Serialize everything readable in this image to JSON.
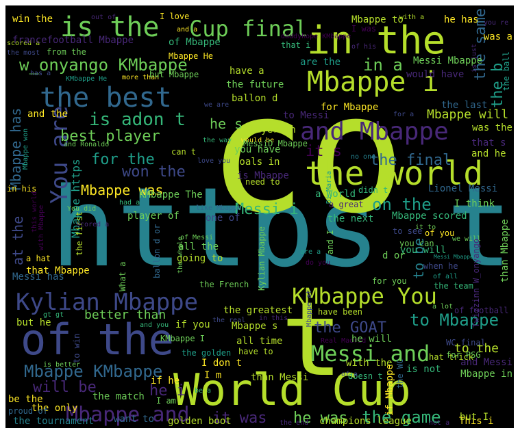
{
  "palette": [
    "#440154",
    "#482878",
    "#3e4989",
    "#31688e",
    "#26828e",
    "#1f9e89",
    "#35b779",
    "#6ece58",
    "#b5de2b",
    "#fde725"
  ],
  "words": [
    {
      "text": "https t",
      "color": "#26828e"
    },
    {
      "text": "co",
      "color": "#b5de2b"
    },
    {
      "text": "t",
      "color": "#b5de2b"
    },
    {
      "text": "World Cup",
      "color": "#b5de2b"
    },
    {
      "text": "of the",
      "color": "#3e4989"
    },
    {
      "text": "in the",
      "color": "#b5de2b"
    },
    {
      "text": "the world",
      "color": "#b5de2b"
    },
    {
      "text": "is the",
      "color": "#6ece58"
    },
    {
      "text": "the best",
      "color": "#31688e"
    },
    {
      "text": "Mbappe i",
      "color": "#b5de2b"
    },
    {
      "text": "and Mbappe",
      "color": "#482878"
    },
    {
      "text": "Kylian Mbappe",
      "color": "#3e4989"
    },
    {
      "text": "KMbappe You",
      "color": "#b5de2b"
    },
    {
      "text": "Messi and",
      "color": "#6ece58"
    },
    {
      "text": "Mbappe and",
      "color": "#482878"
    },
    {
      "text": "Mbappe KMbappe",
      "color": "#31688e"
    },
    {
      "text": "You are",
      "color": "#3e4989"
    },
    {
      "text": "Cup final",
      "color": "#6ece58"
    },
    {
      "text": "w_onyango KMbappe",
      "color": "#6ece58"
    },
    {
      "text": "is adon t",
      "color": "#35b779"
    },
    {
      "text": "the GOAT",
      "color": "#3e4989"
    },
    {
      "text": "to Mbappe",
      "color": "#1f9e89"
    },
    {
      "text": "he was",
      "color": "#6ece58"
    },
    {
      "text": "the game",
      "color": "#35b779"
    },
    {
      "text": "it was",
      "color": "#482878"
    },
    {
      "text": "will be",
      "color": "#482878"
    },
    {
      "text": "best player",
      "color": "#6ece58"
    },
    {
      "text": "for the",
      "color": "#1f9e89"
    },
    {
      "text": "won the",
      "color": "#3e4989"
    },
    {
      "text": "Mbappe was",
      "color": "#fde725"
    },
    {
      "text": "on the",
      "color": "#1f9e89"
    },
    {
      "text": "the final",
      "color": "#31688e"
    },
    {
      "text": "Messi i",
      "color": "#35b779"
    },
    {
      "text": "in a",
      "color": "#6ece58"
    },
    {
      "text": "the same",
      "color": "#31688e"
    },
    {
      "text": "the b",
      "color": "#1f9e89"
    },
    {
      "text": "Mbappe will",
      "color": "#b5de2b"
    },
    {
      "text": "he s",
      "color": "#6ece58"
    },
    {
      "text": "it s",
      "color": "#440154"
    },
    {
      "text": "he i",
      "color": "#482878"
    },
    {
      "text": "better than",
      "color": "#6ece58"
    },
    {
      "text": "to the",
      "color": "#b5de2b"
    },
    {
      "text": "Mbappe has",
      "color": "#31688e"
    },
    {
      "text": "Mbappe https",
      "color": "#1f9e89"
    },
    {
      "text": "at the",
      "color": "#3e4989"
    },
    {
      "text": "to be",
      "color": "#26828e"
    },
    {
      "text": "Messi Mbappe",
      "color": "#6ece58"
    },
    {
      "text": "Mbappe to",
      "color": "#b5de2b"
    },
    {
      "text": "he has",
      "color": "#fde725"
    },
    {
      "text": "was a",
      "color": "#fde725"
    },
    {
      "text": "are the",
      "color": "#1f9e89"
    },
    {
      "text": "would have",
      "color": "#482878"
    },
    {
      "text": "have a",
      "color": "#b5de2b"
    },
    {
      "text": "the future",
      "color": "#6ece58"
    },
    {
      "text": "ballon d",
      "color": "#b5de2b"
    },
    {
      "text": "for Mbappe",
      "color": "#fde725"
    },
    {
      "text": "the last",
      "color": "#31688e"
    },
    {
      "text": "was the",
      "color": "#b5de2b"
    },
    {
      "text": "and the",
      "color": "#fde725"
    },
    {
      "text": "Mbappe won",
      "color": "#1f9e89"
    },
    {
      "text": "in his",
      "color": "#fde725"
    },
    {
      "text": "scored a",
      "color": "#b5de2b"
    },
    {
      "text": "win the",
      "color": "#fde725"
    },
    {
      "text": "out of",
      "color": "#482878"
    },
    {
      "text": "I love",
      "color": "#fde725"
    },
    {
      "text": "and a",
      "color": "#fde725"
    },
    {
      "text": "with a",
      "color": "#b5de2b"
    },
    {
      "text": "you re",
      "color": "#482878"
    },
    {
      "text": "francefootball Mbappe",
      "color": "#482878"
    },
    {
      "text": "of Mbappe",
      "color": "#35b779"
    },
    {
      "text": "Mbappe He",
      "color": "#fde725"
    },
    {
      "text": "daddyhope KMbappe",
      "color": "#440154"
    },
    {
      "text": "I was",
      "color": "#440154"
    },
    {
      "text": "the most",
      "color": "#3e4989"
    },
    {
      "text": "from the",
      "color": "#6ece58"
    },
    {
      "text": "of his",
      "color": "#482878"
    },
    {
      "text": "that i",
      "color": "#35b779"
    },
    {
      "text": "is just",
      "color": "#482878"
    },
    {
      "text": "has a",
      "color": "#3e4989"
    },
    {
      "text": "KMbappe He",
      "color": "#1f9e89"
    },
    {
      "text": "more than",
      "color": "#fde725"
    },
    {
      "text": "but Mbappe",
      "color": "#6ece58"
    },
    {
      "text": "the ball",
      "color": "#1f9e89"
    },
    {
      "text": "to Messi",
      "color": "#482878"
    },
    {
      "text": "for a",
      "color": "#3e4989"
    },
    {
      "text": "the way",
      "color": "#35b779"
    },
    {
      "text": "would be",
      "color": "#fde725"
    },
    {
      "text": "player in",
      "color": "#b5de2b"
    },
    {
      "text": "MessiD Mbappe",
      "color": "#6ece58"
    },
    {
      "text": "and Ronaldo",
      "color": "#6ece58"
    },
    {
      "text": "that s",
      "color": "#482878"
    },
    {
      "text": "and he",
      "color": "#b5de2b"
    },
    {
      "text": "can t",
      "color": "#b5de2b"
    },
    {
      "text": "love you",
      "color": "#3e4989"
    },
    {
      "text": "you have",
      "color": "#6ece58"
    },
    {
      "text": "no one",
      "color": "#26828e"
    },
    {
      "text": "goals in",
      "color": "#b5de2b"
    },
    {
      "text": "is Mbappe",
      "color": "#482878"
    },
    {
      "text": "need to",
      "color": "#b5de2b"
    },
    {
      "text": "Di Maria",
      "color": "#1f9e89"
    },
    {
      "text": "didn t",
      "color": "#35b779"
    },
    {
      "text": "Lionel Messi",
      "color": "#31688e"
    },
    {
      "text": "a World",
      "color": "#35b779"
    },
    {
      "text": "I think",
      "color": "#6ece58"
    },
    {
      "text": "a great",
      "color": "#482878"
    },
    {
      "text": "KMbappe The",
      "color": "#6ece58"
    },
    {
      "text": "had a",
      "color": "#35b779"
    },
    {
      "text": "like Mbappe",
      "color": "#31688e"
    },
    {
      "text": "player of",
      "color": "#6ece58"
    },
    {
      "text": "one of",
      "color": "#3e4989"
    },
    {
      "text": "the next",
      "color": "#35b779"
    },
    {
      "text": "Mbappe scored",
      "color": "#35b779"
    },
    {
      "text": "it to",
      "color": "#6ece58"
    },
    {
      "text": "of you",
      "color": "#fde725"
    },
    {
      "text": "to see",
      "color": "#3e4989"
    },
    {
      "text": "we will",
      "color": "#6ece58"
    },
    {
      "text": "you can",
      "color": "#6ece58"
    },
    {
      "text": "you will",
      "color": "#35b779"
    },
    {
      "text": "d or",
      "color": "#6ece58"
    },
    {
      "text": "than Mbappe",
      "color": "#6ece58"
    },
    {
      "text": "when he",
      "color": "#3e4989"
    },
    {
      "text": "of all",
      "color": "#1f9e89"
    },
    {
      "text": "the team",
      "color": "#35b779"
    },
    {
      "text": "for you",
      "color": "#6ece58"
    },
    {
      "text": "a lot",
      "color": "#6ece58"
    },
    {
      "text": "of football",
      "color": "#482878"
    },
    {
      "text": "Messi has",
      "color": "#31688e"
    },
    {
      "text": "that Mbappe",
      "color": "#fde725"
    },
    {
      "text": "a hat",
      "color": "#fde725"
    },
    {
      "text": "What a",
      "color": "#6ece58"
    },
    {
      "text": "of Messi",
      "color": "#6ece58"
    },
    {
      "text": "all the",
      "color": "#6ece58"
    },
    {
      "text": "going to",
      "color": "#b5de2b"
    },
    {
      "text": "the French",
      "color": "#6ece58"
    },
    {
      "text": "the greatest",
      "color": "#b5de2b"
    },
    {
      "text": "the real",
      "color": "#3e4989"
    },
    {
      "text": "in this",
      "color": "#482878"
    },
    {
      "text": "have been",
      "color": "#b5de2b"
    },
    {
      "text": "Real Madrid",
      "color": "#440154"
    },
    {
      "text": "hat trick",
      "color": "#b5de2b"
    },
    {
      "text": "WC final",
      "color": "#3e4989"
    },
    {
      "text": "for PSG",
      "color": "#6ece58"
    },
    {
      "text": "he will",
      "color": "#6ece58"
    },
    {
      "text": "all time",
      "color": "#b5de2b"
    },
    {
      "text": "have to",
      "color": "#b5de2b"
    },
    {
      "text": "Mbappe s",
      "color": "#b5de2b"
    },
    {
      "text": "if you",
      "color": "#b5de2b"
    },
    {
      "text": "KMbappe I",
      "color": "#6ece58"
    },
    {
      "text": "the golden",
      "color": "#1f9e89"
    },
    {
      "text": "gt gt",
      "color": "#35b779"
    },
    {
      "text": "but he",
      "color": "#b5de2b"
    },
    {
      "text": "and you",
      "color": "#35b779"
    },
    {
      "text": "if he",
      "color": "#fde725"
    },
    {
      "text": "I don t",
      "color": "#fde725"
    },
    {
      "text": "I m",
      "color": "#fde725"
    },
    {
      "text": "is better",
      "color": "#6ece58"
    },
    {
      "text": "the only",
      "color": "#fde725"
    },
    {
      "text": "be the",
      "color": "#fde725"
    },
    {
      "text": "proud of",
      "color": "#31688e"
    },
    {
      "text": "the match",
      "color": "#6ece58"
    },
    {
      "text": "I am",
      "color": "#6ece58"
    },
    {
      "text": "be a",
      "color": "#35b779"
    },
    {
      "text": "want to",
      "color": "#31688e"
    },
    {
      "text": "golden boot",
      "color": "#b5de2b"
    },
    {
      "text": "the end",
      "color": "#482878"
    },
    {
      "text": "champions league",
      "color": "#b5de2b"
    },
    {
      "text": "not a",
      "color": "#482878"
    },
    {
      "text": "This i",
      "color": "#fde725"
    },
    {
      "text": "but I",
      "color": "#b5de2b"
    },
    {
      "text": "is not",
      "color": "#35b779"
    },
    {
      "text": "and Messi",
      "color": "#482878"
    },
    {
      "text": "Mbappe in",
      "color": "#6ece58"
    },
    {
      "text": "with the",
      "color": "#b5de2b"
    },
    {
      "text": "doesn t",
      "color": "#35b779"
    },
    {
      "text": "of a",
      "color": "#3e4989"
    },
    {
      "text": "the WC",
      "color": "#31688e"
    },
    {
      "text": "than Messi",
      "color": "#b5de2b"
    },
    {
      "text": "the tournament",
      "color": "#26828e"
    },
    {
      "text": "if Mbappe",
      "color": "#fde725"
    },
    {
      "text": "to win",
      "color": "#3e4989"
    },
    {
      "text": "the first",
      "color": "#b5de2b"
    },
    {
      "text": "this world",
      "color": "#440154"
    },
    {
      "text": "with Mbappe",
      "color": "#440154"
    },
    {
      "text": "You did",
      "color": "#6ece58"
    },
    {
      "text": "scored a",
      "color": "#482878"
    },
    {
      "text": "Kylian Mbappe",
      "color": "#6ece58"
    },
    {
      "text": "the whole",
      "color": "#6ece58"
    },
    {
      "text": "ballon d or",
      "color": "#31688e"
    },
    {
      "text": "Twizzinn W_onyango",
      "color": "#482878"
    },
    {
      "text": "are a",
      "color": "#1f9e89"
    },
    {
      "text": "do you",
      "color": "#440154"
    },
    {
      "text": "Messi Mbappe",
      "color": "#1f9e89"
    },
    {
      "text": "we are",
      "color": "#3e4989"
    },
    {
      "text": "Mbappe at",
      "color": "#3e4989"
    },
    {
      "text": "and I",
      "color": "#6ece58"
    }
  ]
}
